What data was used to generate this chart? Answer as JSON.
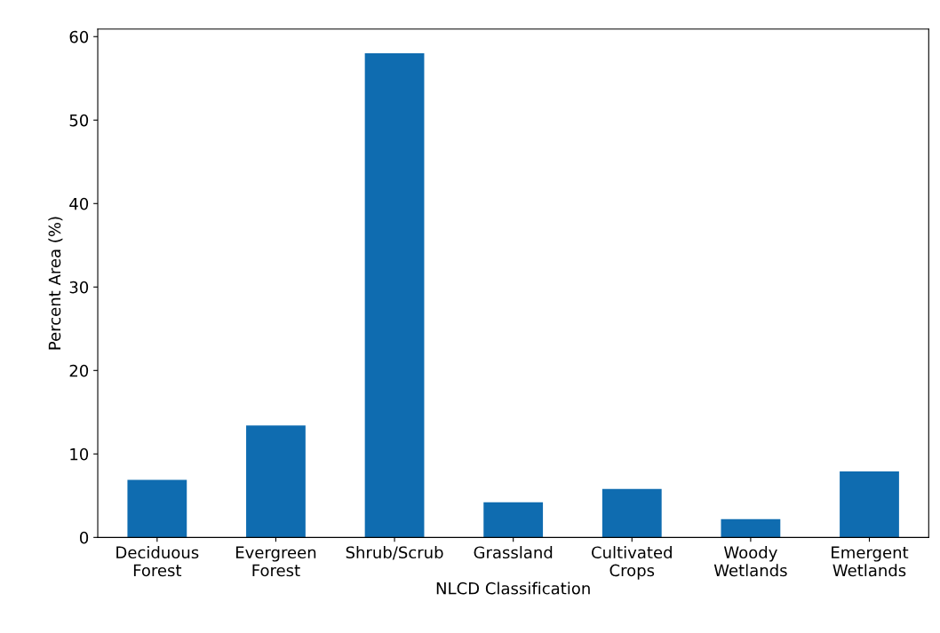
{
  "chart_data": {
    "type": "bar",
    "xlabel": "NLCD Classification",
    "ylabel": "Percent Area (%)",
    "categories": [
      "Deciduous\nForest",
      "Evergreen\nForest",
      "Shrub/Scrub",
      "Grassland",
      "Cultivated\nCrops",
      "Woody\nWetlands",
      "Emergent\nWetlands"
    ],
    "values": [
      6.9,
      13.4,
      58.0,
      4.2,
      5.8,
      2.2,
      7.9
    ],
    "color": "#0f6cb0",
    "ylim": [
      0,
      60.9
    ],
    "yticks": [
      0,
      10,
      20,
      30,
      40,
      50,
      60
    ],
    "grid": false
  }
}
